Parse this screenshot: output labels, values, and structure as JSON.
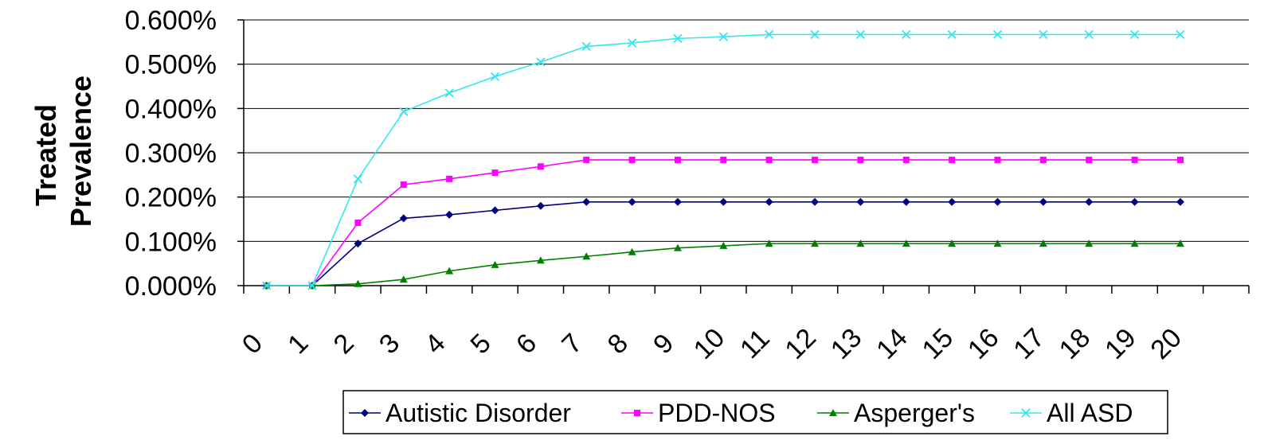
{
  "chart_data": {
    "type": "line",
    "categories": [
      "0",
      "1",
      "2",
      "3",
      "4",
      "5",
      "6",
      "7",
      "8",
      "9",
      "10",
      "11",
      "12",
      "13",
      "14",
      "15",
      "16",
      "17",
      "18",
      "19",
      "20"
    ],
    "ylabel_lines": [
      "Treated",
      "Prevalence"
    ],
    "xlabel": "",
    "ylim": [
      0,
      0.6
    ],
    "y_ticks": [
      "0.000%",
      "0.100%",
      "0.200%",
      "0.300%",
      "0.400%",
      "0.500%",
      "0.600%"
    ],
    "grid": true,
    "legend_position": "bottom",
    "series": [
      {
        "name": "Autistic Disorder",
        "color": "#000080",
        "marker": "diamond",
        "values": [
          0,
          0,
          0.095,
          0.152,
          0.16,
          0.17,
          0.18,
          0.189,
          0.189,
          0.189,
          0.189,
          0.189,
          0.189,
          0.189,
          0.189,
          0.189,
          0.189,
          0.189,
          0.189,
          0.189,
          0.189
        ]
      },
      {
        "name": "PDD-NOS",
        "color": "#FF00FF",
        "marker": "square",
        "values": [
          0,
          0,
          0.142,
          0.228,
          0.241,
          0.255,
          0.269,
          0.284,
          0.284,
          0.284,
          0.284,
          0.284,
          0.284,
          0.284,
          0.284,
          0.284,
          0.284,
          0.284,
          0.284,
          0.284,
          0.284
        ]
      },
      {
        "name": "Asperger's",
        "color": "#008000",
        "marker": "triangle",
        "values": [
          0,
          0,
          0.004,
          0.014,
          0.033,
          0.047,
          0.057,
          0.066,
          0.076,
          0.085,
          0.09,
          0.095,
          0.095,
          0.095,
          0.095,
          0.095,
          0.095,
          0.095,
          0.095,
          0.095,
          0.095
        ]
      },
      {
        "name": "All ASD",
        "color": "#33E6EE",
        "marker": "x",
        "values": [
          0,
          0,
          0.241,
          0.393,
          0.435,
          0.472,
          0.505,
          0.54,
          0.548,
          0.558,
          0.562,
          0.567,
          0.567,
          0.567,
          0.567,
          0.567,
          0.567,
          0.567,
          0.567,
          0.567,
          0.567
        ]
      }
    ]
  }
}
